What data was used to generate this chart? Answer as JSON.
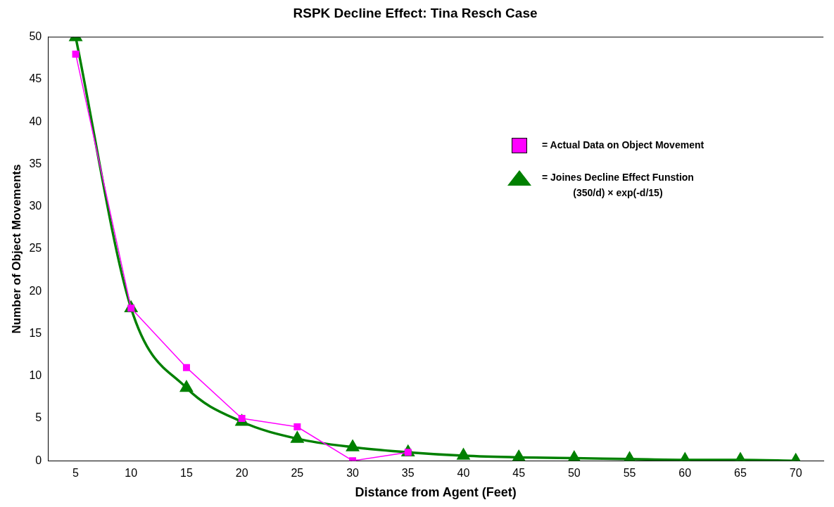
{
  "chart_data": {
    "type": "line",
    "title": "RSPK Decline Effect: Tina Resch Case",
    "xlabel": "Distance from Agent (Feet)",
    "ylabel": "Number of Object Movements",
    "categories": [
      "5",
      "10",
      "15",
      "20",
      "25",
      "30",
      "35",
      "40",
      "45",
      "50",
      "55",
      "60",
      "65",
      "70"
    ],
    "series": [
      {
        "name": "= Actual Data on Object Movement",
        "color": "#ff00ff",
        "marker": "square",
        "values": [
          48,
          18,
          11,
          5,
          4,
          0,
          1,
          null,
          null,
          null,
          null,
          null,
          null,
          null
        ]
      },
      {
        "name": "= Joines Decline Effect Funstion\n(350/d) × exp(-d/15)",
        "color": "#008000",
        "marker": "triangle",
        "values": [
          50,
          18,
          8.6,
          4.6,
          2.6,
          1.6,
          1,
          0.6,
          0.4,
          0.3,
          0.2,
          0.1,
          0.1,
          0
        ]
      }
    ],
    "ylim": [
      0,
      50
    ],
    "yticks": [
      0,
      5,
      10,
      15,
      20,
      25,
      30,
      35,
      40,
      45,
      50
    ],
    "grid": false,
    "legend": "right"
  }
}
